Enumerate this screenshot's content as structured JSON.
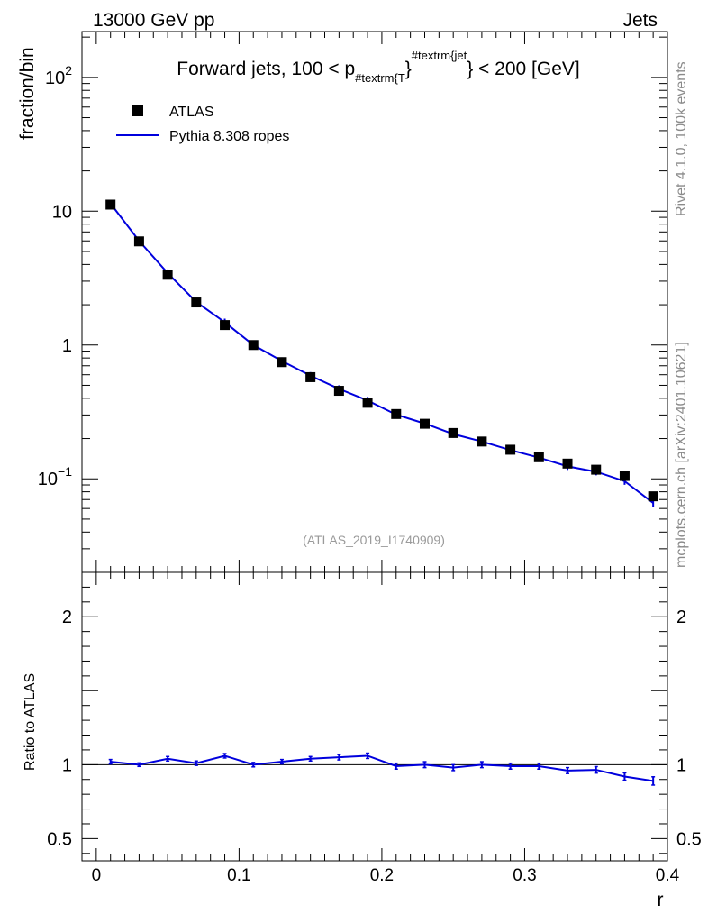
{
  "header": {
    "left": "13000 GeV pp",
    "right": "Jets"
  },
  "side_labels": {
    "top": "Rivet 4.1.0,  100k events",
    "bottom": "mcplots.cern.ch [arXiv:2401.10621]"
  },
  "chart_data": [
    {
      "type": "scatter",
      "title": "Forward jets, 100 < p",
      "title_sub": "#textrm{T",
      "title_sup": "#textrm{jet",
      "title_tail": " < 200 [GeV]",
      "watermark": "(ATLAS_2019_I1740909)",
      "ylabel": "fraction/bin",
      "yscale": "log",
      "ylim": [
        0.02,
        220
      ],
      "xlim": [
        -0.01,
        0.4
      ],
      "yticks": [
        {
          "v": 0.1,
          "base": "10",
          "exp": "−1"
        },
        {
          "v": 1,
          "label": "1"
        },
        {
          "v": 10,
          "label": "10"
        },
        {
          "v": 100,
          "base": "10",
          "exp": "2"
        }
      ],
      "legend": [
        {
          "name": "ATLAS",
          "marker": "square",
          "color": "#000000"
        },
        {
          "name": "Pythia 8.308 ropes",
          "marker": "line",
          "color": "#0000dd"
        }
      ],
      "series": [
        {
          "name": "ATLAS",
          "color": "#000000",
          "x": [
            0.01,
            0.03,
            0.05,
            0.07,
            0.09,
            0.11,
            0.13,
            0.15,
            0.17,
            0.19,
            0.21,
            0.23,
            0.25,
            0.27,
            0.29,
            0.31,
            0.33,
            0.35,
            0.37,
            0.39
          ],
          "y": [
            11.2,
            5.95,
            3.35,
            2.08,
            1.41,
            1.0,
            0.745,
            0.575,
            0.455,
            0.37,
            0.305,
            0.258,
            0.22,
            0.19,
            0.165,
            0.145,
            0.13,
            0.117,
            0.105,
            0.074
          ]
        },
        {
          "name": "Pythia 8.308 ropes",
          "color": "#0000dd",
          "x": [
            0.01,
            0.03,
            0.05,
            0.07,
            0.09,
            0.11,
            0.13,
            0.15,
            0.17,
            0.19,
            0.21,
            0.23,
            0.25,
            0.27,
            0.29,
            0.31,
            0.33,
            0.35,
            0.37,
            0.39
          ],
          "y": [
            11.4,
            6.0,
            3.45,
            2.1,
            1.48,
            1.0,
            0.76,
            0.59,
            0.47,
            0.385,
            0.302,
            0.259,
            0.216,
            0.19,
            0.164,
            0.144,
            0.124,
            0.113,
            0.096,
            0.066
          ]
        }
      ]
    },
    {
      "type": "line",
      "ylabel": "Ratio to ATLAS",
      "xlabel": "r",
      "ylim": [
        0.35,
        2.3
      ],
      "xlim": [
        -0.01,
        0.4
      ],
      "yticks": [
        0.5,
        1,
        2
      ],
      "xticks": [
        0,
        0.1,
        0.2,
        0.3,
        0.4
      ],
      "xtick_labels": [
        "0",
        "0.1",
        "0.2",
        "0.3",
        "0.4"
      ],
      "reference": 1,
      "series": [
        {
          "name": "Pythia 8.308 ropes",
          "color": "#0000dd",
          "x": [
            0.01,
            0.03,
            0.05,
            0.07,
            0.09,
            0.11,
            0.13,
            0.15,
            0.17,
            0.19,
            0.21,
            0.23,
            0.25,
            0.27,
            0.29,
            0.31,
            0.33,
            0.35,
            0.37,
            0.39
          ],
          "y": [
            1.02,
            1.0,
            1.04,
            1.01,
            1.06,
            1.0,
            1.02,
            1.04,
            1.05,
            1.06,
            0.99,
            1.0,
            0.98,
            1.0,
            0.99,
            0.99,
            0.96,
            0.965,
            0.92,
            0.89
          ],
          "err": [
            0.015,
            0.012,
            0.015,
            0.015,
            0.015,
            0.015,
            0.015,
            0.015,
            0.018,
            0.018,
            0.02,
            0.02,
            0.02,
            0.02,
            0.02,
            0.02,
            0.02,
            0.022,
            0.025,
            0.028
          ]
        }
      ]
    }
  ]
}
